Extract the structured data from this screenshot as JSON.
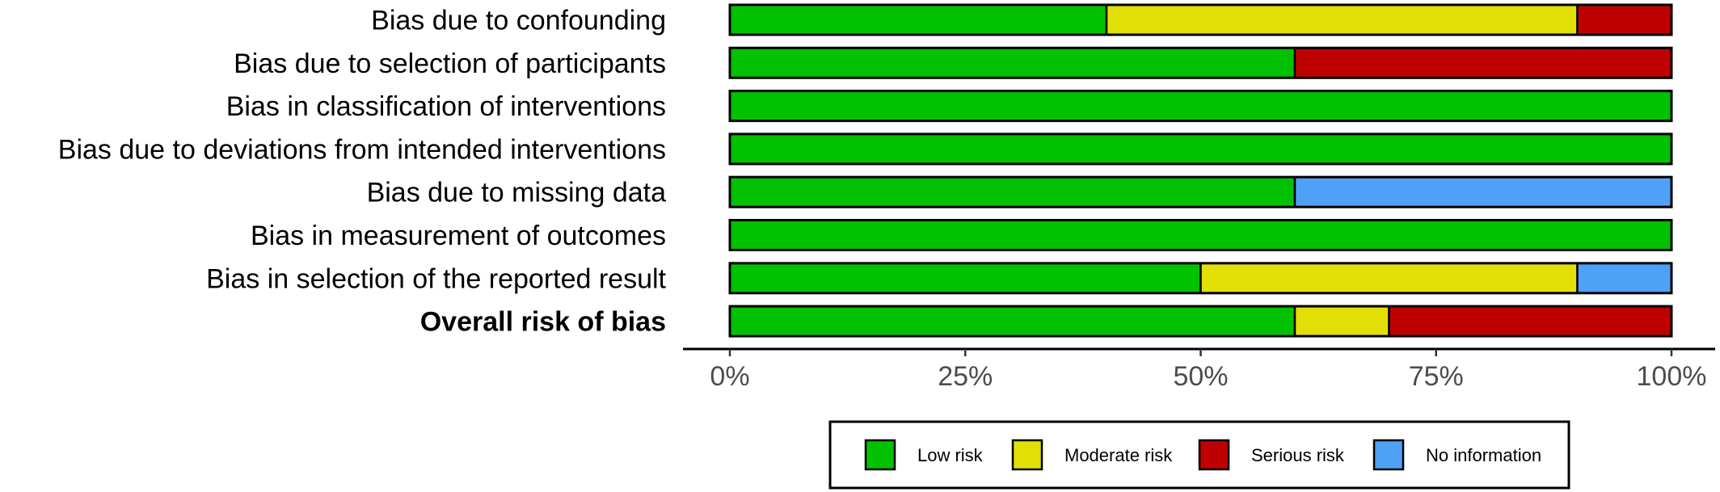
{
  "chart_data": {
    "type": "bar",
    "orientation": "horizontal",
    "stacked": true,
    "categories": [
      "Bias due to confounding",
      "Bias due to selection of participants",
      "Bias in classification of interventions",
      "Bias due to deviations from intended interventions",
      "Bias due to missing data",
      "Bias in measurement of outcomes",
      "Bias in selection of the reported result",
      "Overall risk of bias"
    ],
    "bold_categories": [
      "Overall risk of bias"
    ],
    "series": [
      {
        "name": "Low risk",
        "color": "#02C100",
        "values": [
          40,
          60,
          100,
          100,
          60,
          100,
          50,
          60
        ]
      },
      {
        "name": "Moderate risk",
        "color": "#E2DF07",
        "values": [
          50,
          0,
          0,
          0,
          0,
          0,
          40,
          10
        ]
      },
      {
        "name": "Serious risk",
        "color": "#BF0000",
        "values": [
          10,
          40,
          0,
          0,
          0,
          0,
          0,
          30
        ]
      },
      {
        "name": "No information",
        "color": "#4EA1F7",
        "values": [
          0,
          0,
          0,
          0,
          40,
          0,
          10,
          0
        ]
      }
    ],
    "xlim": [
      0,
      100
    ],
    "x_ticks": [
      0,
      25,
      50,
      75,
      100
    ],
    "x_tick_labels": [
      "0%",
      "25%",
      "50%",
      "75%",
      "100%"
    ],
    "title": "",
    "xlabel": "",
    "ylabel": "",
    "grid": false,
    "legend_position": "bottom"
  }
}
